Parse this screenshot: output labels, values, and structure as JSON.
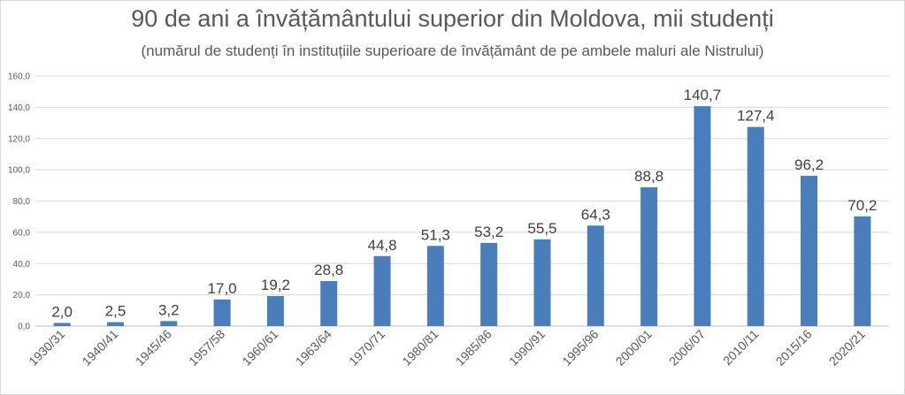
{
  "chart_data": {
    "type": "bar",
    "title": "90 de ani a învățământului superior din Moldova, mii studenți",
    "subtitle": "(numărul de studenți în instituțiile superioare de învățământ de pe ambele maluri ale Nistrului)",
    "categories": [
      "1930/31",
      "1940/41",
      "1945/46",
      "1957/58",
      "1960/61",
      "1963/64",
      "1970/71",
      "1980/81",
      "1985/86",
      "1990/91",
      "1995/96",
      "2000/01",
      "2006/07",
      "2010/11",
      "2015/16",
      "2020/21"
    ],
    "values": [
      2.0,
      2.5,
      3.2,
      17.0,
      19.2,
      28.8,
      44.8,
      51.3,
      53.2,
      55.5,
      64.3,
      88.8,
      140.7,
      127.4,
      96.2,
      70.2
    ],
    "data_labels": [
      "2,0",
      "2,5",
      "3,2",
      "17,0",
      "19,2",
      "28,8",
      "44,8",
      "51,3",
      "53,2",
      "55,5",
      "64,3",
      "88,8",
      "140,7",
      "127,4",
      "96,2",
      "70,2"
    ],
    "ylim": [
      0,
      160
    ],
    "yticks": [
      0,
      20,
      40,
      60,
      80,
      100,
      120,
      140,
      160
    ],
    "ytick_labels": [
      "0,0",
      "20,0",
      "40,0",
      "60,0",
      "80,0",
      "100,0",
      "120,0",
      "140,0",
      "160,0"
    ],
    "xlabel": "",
    "ylabel": "",
    "grid": true,
    "legend": "none",
    "bar_color": "#4a7ebb",
    "grid_color": "#d9d9d9"
  }
}
